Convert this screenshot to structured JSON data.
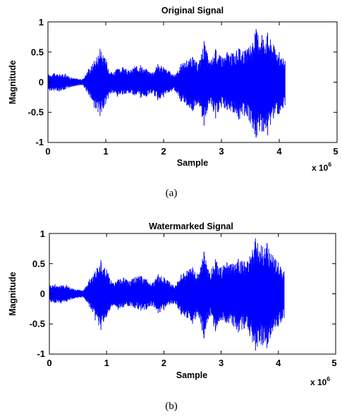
{
  "chart_data": [
    {
      "type": "line",
      "title": "Original Signal",
      "xlabel": "Sample",
      "ylabel": "Magnitude",
      "xlim": [
        0,
        5
      ],
      "ylim": [
        -1,
        1
      ],
      "x_scale_base": "x 10",
      "x_scale_exponent": "6",
      "x_ticks": [
        "0",
        "1",
        "2",
        "3",
        "4",
        "5"
      ],
      "y_ticks": [
        "1",
        "0.5",
        "0",
        "-0.5",
        "-1"
      ],
      "grid": false,
      "caption": "(a)",
      "color": "#0000ff",
      "series": [
        {
          "x": [
            0.0,
            0.1,
            0.2,
            0.3,
            0.4,
            0.5,
            0.6,
            0.7,
            0.8,
            0.9,
            1.0,
            1.1,
            1.2,
            1.3,
            1.4,
            1.5,
            1.6,
            1.7,
            1.8,
            1.9,
            2.0,
            2.1,
            2.2,
            2.3,
            2.4,
            2.5,
            2.6,
            2.7,
            2.8,
            2.9,
            3.0,
            3.1,
            3.2,
            3.3,
            3.4,
            3.5,
            3.6,
            3.7,
            3.8,
            3.9,
            4.0,
            4.1
          ],
          "max": [
            0.13,
            0.15,
            0.13,
            0.14,
            0.08,
            0.06,
            0.05,
            0.22,
            0.35,
            0.55,
            0.38,
            0.16,
            0.22,
            0.25,
            0.19,
            0.26,
            0.28,
            0.22,
            0.16,
            0.3,
            0.25,
            0.18,
            0.12,
            0.3,
            0.36,
            0.42,
            0.3,
            0.68,
            0.33,
            0.55,
            0.42,
            0.5,
            0.48,
            0.56,
            0.52,
            0.6,
            0.88,
            0.78,
            0.82,
            0.62,
            0.5,
            0.35
          ],
          "min": [
            -0.15,
            -0.14,
            -0.15,
            -0.12,
            -0.08,
            -0.06,
            -0.05,
            -0.2,
            -0.42,
            -0.56,
            -0.36,
            -0.18,
            -0.24,
            -0.2,
            -0.18,
            -0.22,
            -0.26,
            -0.24,
            -0.18,
            -0.3,
            -0.25,
            -0.16,
            -0.14,
            -0.32,
            -0.38,
            -0.48,
            -0.34,
            -0.72,
            -0.35,
            -0.6,
            -0.42,
            -0.46,
            -0.5,
            -0.62,
            -0.56,
            -0.68,
            -0.92,
            -0.82,
            -0.88,
            -0.6,
            -0.52,
            -0.38
          ]
        }
      ]
    },
    {
      "type": "line",
      "title": "Watermarked Signal",
      "xlabel": "Sample",
      "ylabel": "Magnitude",
      "xlim": [
        0,
        5
      ],
      "ylim": [
        -1,
        1
      ],
      "x_scale_base": "x 10",
      "x_scale_exponent": "6",
      "x_ticks": [
        "0",
        "1",
        "2",
        "3",
        "4",
        "5"
      ],
      "y_ticks": [
        "1",
        "0.5",
        "0",
        "-0.5",
        "-1"
      ],
      "grid": false,
      "caption": "(b)",
      "color": "#0000ff",
      "series": [
        {
          "x": [
            0.0,
            0.1,
            0.2,
            0.3,
            0.4,
            0.5,
            0.6,
            0.7,
            0.8,
            0.9,
            1.0,
            1.1,
            1.2,
            1.3,
            1.4,
            1.5,
            1.6,
            1.7,
            1.8,
            1.9,
            2.0,
            2.1,
            2.2,
            2.3,
            2.4,
            2.5,
            2.6,
            2.7,
            2.8,
            2.9,
            3.0,
            3.1,
            3.2,
            3.3,
            3.4,
            3.5,
            3.6,
            3.7,
            3.8,
            3.9,
            4.0,
            4.1
          ],
          "max": [
            0.15,
            0.16,
            0.14,
            0.15,
            0.09,
            0.07,
            0.06,
            0.24,
            0.37,
            0.56,
            0.4,
            0.18,
            0.24,
            0.27,
            0.21,
            0.28,
            0.3,
            0.24,
            0.18,
            0.32,
            0.27,
            0.2,
            0.14,
            0.32,
            0.38,
            0.44,
            0.32,
            0.7,
            0.35,
            0.57,
            0.44,
            0.52,
            0.5,
            0.58,
            0.54,
            0.62,
            0.92,
            0.8,
            0.84,
            0.64,
            0.52,
            0.37
          ],
          "min": [
            -0.16,
            -0.15,
            -0.16,
            -0.13,
            -0.09,
            -0.07,
            -0.06,
            -0.22,
            -0.44,
            -0.6,
            -0.38,
            -0.2,
            -0.26,
            -0.22,
            -0.2,
            -0.24,
            -0.28,
            -0.26,
            -0.2,
            -0.32,
            -0.27,
            -0.18,
            -0.16,
            -0.34,
            -0.4,
            -0.5,
            -0.36,
            -0.74,
            -0.37,
            -0.62,
            -0.44,
            -0.48,
            -0.52,
            -0.64,
            -0.58,
            -0.7,
            -0.94,
            -0.84,
            -0.9,
            -0.62,
            -0.54,
            -0.4
          ]
        }
      ]
    }
  ]
}
